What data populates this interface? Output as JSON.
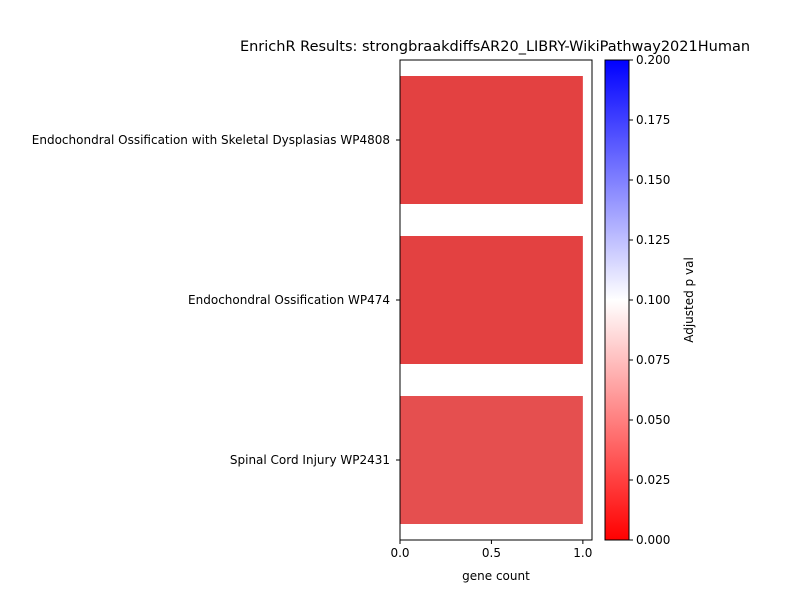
{
  "chart_data": {
    "type": "bar",
    "orientation": "horizontal",
    "title": "EnrichR Results: strongbraakdiffsAR20_LIBRY-WikiPathway2021Human",
    "xlabel": "gene count",
    "ylabel": "",
    "xlim": [
      0,
      1.05
    ],
    "xticks": [
      0.0,
      0.5,
      1.0
    ],
    "xtick_labels": [
      "0.0",
      "0.5",
      "1.0"
    ],
    "categories": [
      "Endochondral Ossification with Skeletal Dysplasias WP4808",
      "Endochondral Ossification WP474",
      "Spinal Cord Injury WP2431"
    ],
    "values": [
      1,
      1,
      1
    ],
    "bar_colors": [
      "#e34141",
      "#e34141",
      "#e54f4f"
    ],
    "colorbar": {
      "label": "Adjusted p val",
      "range": [
        0.0,
        0.2
      ],
      "ticks": [
        0.0,
        0.025,
        0.05,
        0.075,
        0.1,
        0.125,
        0.15,
        0.175,
        0.2
      ],
      "tick_labels": [
        "0.000",
        "0.025",
        "0.050",
        "0.075",
        "0.100",
        "0.125",
        "0.150",
        "0.175",
        "0.200"
      ],
      "colormap": [
        "#ff0000",
        "#ffffff",
        "#0000ff"
      ]
    },
    "grid": false,
    "legend": "none"
  }
}
